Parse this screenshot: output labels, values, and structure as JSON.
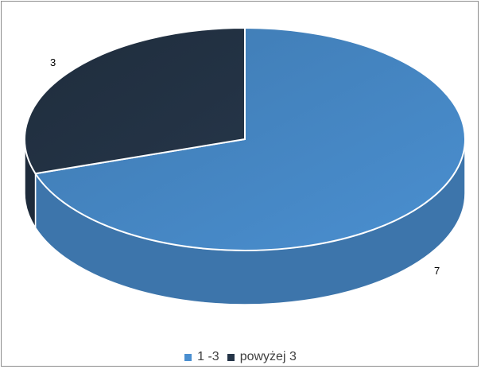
{
  "chart_data": {
    "type": "pie",
    "title": "",
    "categories": [
      "1 -3",
      "powyżej 3"
    ],
    "values": [
      7,
      3
    ],
    "colors": [
      "#4a8fd0",
      "#253548"
    ],
    "data_labels": [
      "7",
      "3"
    ],
    "legend_position": "bottom",
    "style": "3d"
  }
}
